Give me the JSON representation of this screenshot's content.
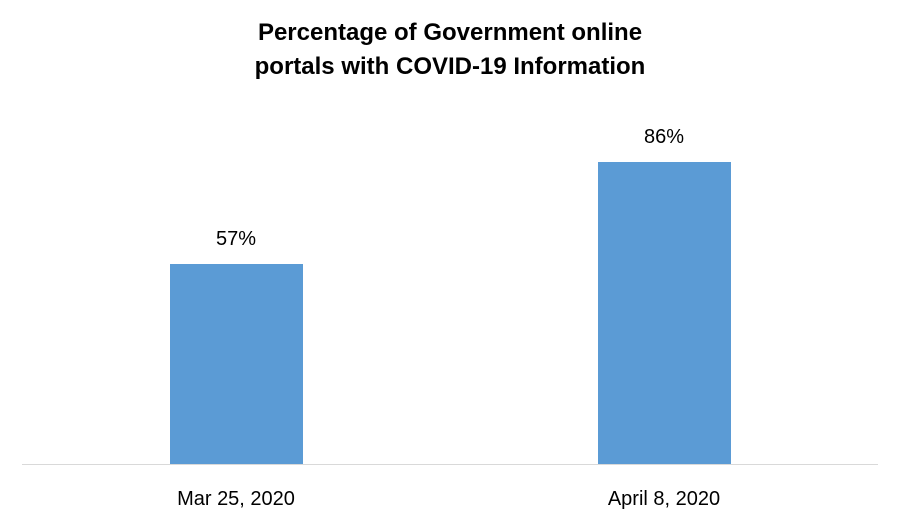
{
  "chart_data": {
    "type": "bar",
    "title": "Percentage of Government online portals with COVID-19 Information",
    "title_lines": [
      "Percentage of Government online",
      "portals with COVID-19 Information"
    ],
    "categories": [
      "Mar 25, 2020",
      "April 8, 2020"
    ],
    "values": [
      57,
      86
    ],
    "data_labels": [
      "57%",
      "86%"
    ],
    "xlabel": "",
    "ylabel": "",
    "ylim": [
      0,
      100
    ],
    "grid": false,
    "legend": false,
    "bar_color": "#5B9BD5",
    "axis_line_color": "#D9D9D9",
    "text_color": "#000000",
    "background_color": "#FFFFFF"
  }
}
